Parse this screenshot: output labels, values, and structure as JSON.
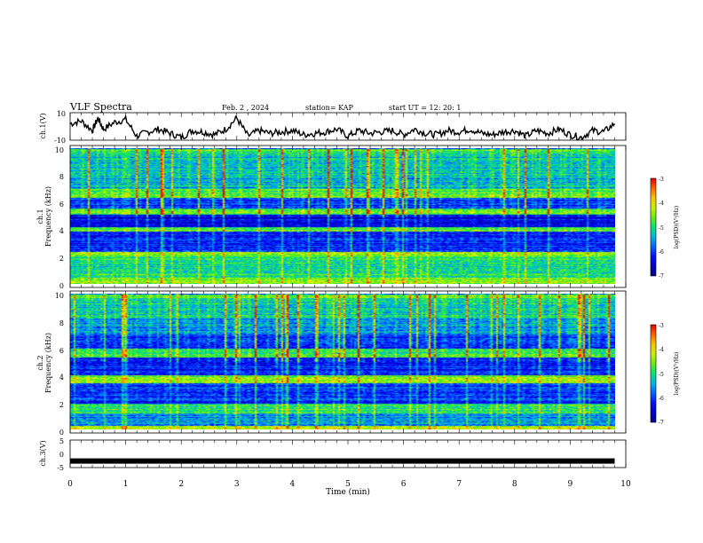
{
  "header": {
    "title": "VLF Spectra",
    "date": "Feb. 2 , 2024",
    "station": "station= KAP",
    "start": "start  UT =   12: 20: 1"
  },
  "chart_data": [
    {
      "type": "line",
      "name": "ch1-waveform",
      "ylabel": "ch.1(V)",
      "ylim": [
        -10,
        10
      ],
      "yticks": [
        "10",
        "-10"
      ],
      "xlim": [
        0,
        10
      ],
      "x": [
        0,
        0.2,
        0.4,
        0.5,
        0.6,
        0.8,
        1.0,
        1.2,
        1.4,
        1.6,
        1.8,
        2.0,
        2.2,
        2.4,
        2.6,
        2.8,
        3.0,
        3.2,
        3.4,
        3.6,
        3.8,
        4.0,
        4.2,
        4.4,
        4.6,
        4.8,
        5.0,
        5.2,
        5.4,
        5.6,
        5.8,
        6.0,
        6.2,
        6.4,
        6.6,
        6.8,
        7.0,
        7.2,
        7.4,
        7.6,
        7.8,
        8.0,
        8.2,
        8.4,
        8.6,
        8.8,
        9.0,
        9.2,
        9.4,
        9.6,
        9.8
      ],
      "y": [
        2,
        4,
        -3,
        6,
        -2,
        3,
        5,
        -7,
        -4,
        -2,
        -5,
        -8,
        -3,
        -4,
        -6,
        -2,
        6,
        -7,
        -3,
        -5,
        -4,
        -3,
        -6,
        -5,
        -4,
        -2,
        -7,
        -3,
        -5,
        -4,
        -3,
        -6,
        -2,
        -5,
        -6,
        -3,
        -4,
        -2,
        -5,
        -6,
        -4,
        -3,
        -7,
        -3,
        -5,
        -2,
        -6,
        -8,
        -3,
        -4,
        2
      ]
    },
    {
      "type": "heatmap",
      "name": "ch1-spectrogram",
      "ylabel": "Frequency (kHz)",
      "channel_label": "ch.1",
      "xlim": [
        0,
        9.8
      ],
      "ylim": [
        0,
        10
      ],
      "yticks": [
        "0",
        "2",
        "4",
        "6",
        "8",
        "10"
      ],
      "colorbar": {
        "label": "log(PSD)(V²/Hz)",
        "range": [
          -7,
          -3
        ],
        "ticks": [
          "-3",
          "-4",
          "-5",
          "-6",
          "-7"
        ]
      }
    },
    {
      "type": "heatmap",
      "name": "ch2-spectrogram",
      "ylabel": "Frequency (kHz)",
      "channel_label": "ch.2",
      "xlim": [
        0,
        9.8
      ],
      "ylim": [
        0,
        10
      ],
      "yticks": [
        "0",
        "2",
        "4",
        "6",
        "8",
        "10"
      ],
      "colorbar": {
        "label": "log(PSD)(V²/Hz)",
        "range": [
          -7,
          -3
        ],
        "ticks": [
          "-3",
          "-4",
          "-5",
          "-6",
          "-7"
        ]
      }
    },
    {
      "type": "line",
      "name": "ch3-waveform",
      "ylabel": "ch.3(V)",
      "ylim": [
        -5,
        5
      ],
      "yticks": [
        "5",
        "0",
        "-5"
      ],
      "xlim": [
        0,
        10
      ],
      "x": [
        0,
        9.8
      ],
      "y": [
        -2.6,
        -2.6
      ]
    }
  ],
  "xaxis": {
    "label": "Time (min)",
    "ticks": [
      "0",
      "1",
      "2",
      "3",
      "4",
      "5",
      "6",
      "7",
      "8",
      "9",
      "10"
    ],
    "range": [
      0,
      10
    ]
  },
  "colors": {
    "low": "#0000b0",
    "mid": "#00e050",
    "high": "#ff0000"
  }
}
